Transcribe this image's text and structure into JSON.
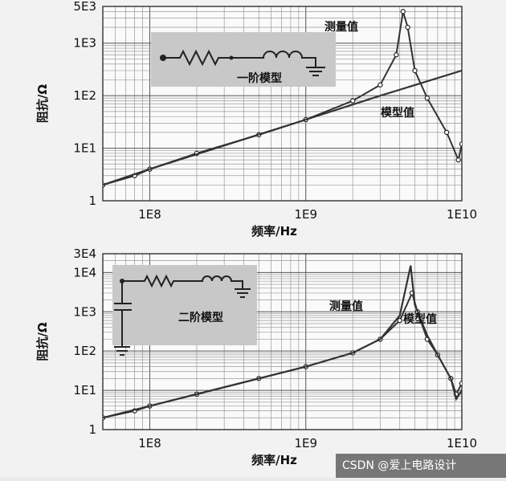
{
  "chart_data": [
    {
      "type": "line",
      "xscale": "log",
      "yscale": "log",
      "xlim": [
        50000000,
        10000000000
      ],
      "ylim": [
        1,
        5000
      ],
      "xticks": [
        "1E8",
        "1E9",
        "1E10"
      ],
      "yticks": [
        "1",
        "1E1",
        "1E2",
        "1E3",
        "5E3"
      ],
      "xlabel": "频率/Hz",
      "ylabel": "阻抗/Ω",
      "inset_label": "一阶模型",
      "series": [
        {
          "name": "测量值",
          "marker": "circle",
          "x": [
            50000000,
            80000000,
            100000000,
            200000000,
            500000000,
            1000000000,
            2000000000,
            3000000000,
            3800000000,
            4200000000,
            4500000000,
            5000000000,
            6000000000,
            8000000000,
            9500000000,
            10000000000
          ],
          "y": [
            2,
            3,
            4,
            8,
            18,
            35,
            80,
            160,
            600,
            4000,
            2000,
            300,
            90,
            20,
            6,
            12
          ]
        },
        {
          "name": "模型值",
          "marker": "none",
          "x": [
            50000000,
            100000000,
            1000000000,
            3000000000,
            10000000000
          ],
          "y": [
            2,
            4,
            35,
            100,
            300
          ]
        }
      ],
      "annotations": [
        "测量值",
        "模型值"
      ]
    },
    {
      "type": "line",
      "xscale": "log",
      "yscale": "log",
      "xlim": [
        50000000,
        10000000000
      ],
      "ylim": [
        1,
        30000
      ],
      "xticks": [
        "1E8",
        "1E9",
        "1E10"
      ],
      "yticks": [
        "1",
        "1E1",
        "1E2",
        "1E3",
        "1E4",
        "3E4"
      ],
      "xlabel": "频率/Hz",
      "ylabel": "阻抗/Ω",
      "inset_label": "二阶模型",
      "series": [
        {
          "name": "测量值",
          "marker": "circle",
          "x": [
            50000000,
            80000000,
            100000000,
            200000000,
            500000000,
            1000000000,
            2000000000,
            3000000000,
            4000000000,
            4800000000,
            5200000000,
            6000000000,
            7000000000,
            8500000000,
            9200000000,
            10000000000
          ],
          "y": [
            2,
            3,
            4,
            8,
            20,
            40,
            90,
            200,
            600,
            3000,
            1000,
            200,
            80,
            20,
            8,
            15
          ]
        },
        {
          "name": "模型值",
          "marker": "none",
          "x": [
            50000000,
            100000000,
            1000000000,
            2000000000,
            3000000000,
            4000000000,
            4700000000,
            5000000000,
            6000000000,
            7000000000,
            8500000000,
            9200000000,
            10000000000
          ],
          "y": [
            2,
            4,
            40,
            90,
            200,
            800,
            15000,
            1500,
            250,
            80,
            20,
            6,
            10
          ]
        }
      ],
      "annotations": [
        "测量值",
        "模型值"
      ]
    }
  ],
  "watermark": "CSDN @爱上电路设计"
}
